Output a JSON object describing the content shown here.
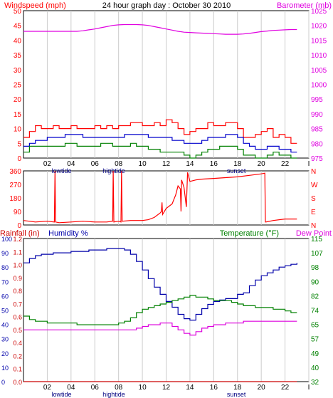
{
  "title": "24 hour graph day : October 30 2010",
  "colors": {
    "wind": "#ff0000",
    "gust_avg": "#0000cc",
    "wind_low": "#008000",
    "baro": "#e000e0",
    "rain": "#cc0000",
    "humidity": "#0000aa",
    "temperature": "#008000",
    "dewpoint": "#dd00dd",
    "grid": "#cccccc",
    "black": "#000000"
  },
  "x_axis": {
    "ticks": [
      "02",
      "04",
      "06",
      "08",
      "10",
      "12",
      "14",
      "16",
      "18",
      "20",
      "22",
      "I"
    ],
    "events": [
      {
        "label": "lowtide",
        "at": 3.2
      },
      {
        "label": "hightide",
        "at": 7.6
      },
      {
        "label": "sunset",
        "at": 17.9
      }
    ]
  },
  "chart_data": [
    {
      "id": "wind",
      "type": "line",
      "left_label": "Windspeed (mph)",
      "right_label": "Barometer (mb)",
      "left_ticks": [
        "0",
        "5",
        "10",
        "15",
        "20",
        "25",
        "30",
        "35",
        "40",
        "45",
        "50"
      ],
      "right_ticks": [
        "975",
        "980",
        "985",
        "990",
        "995",
        "1000",
        "1005",
        "1010",
        "1015",
        "1020",
        "1025"
      ],
      "ylim_left": [
        0,
        50
      ],
      "ylim_right": [
        975,
        1025
      ],
      "x_hours": [
        0,
        0.5,
        1,
        1.5,
        2,
        2.5,
        3,
        3.5,
        4,
        4.5,
        5,
        5.5,
        6,
        6.5,
        7,
        7.5,
        8,
        8.5,
        9,
        9.5,
        10,
        10.5,
        11,
        11.5,
        12,
        12.5,
        13,
        13.5,
        14,
        14.5,
        15,
        15.5,
        16,
        16.5,
        17,
        17.5,
        18,
        18.5,
        19,
        19.5,
        20,
        20.5,
        21,
        21.5,
        22,
        22.5,
        23
      ],
      "series": [
        {
          "key": "wind_high",
          "color_key": "wind",
          "values": [
            7,
            9,
            11,
            10,
            10,
            11,
            10,
            10,
            11,
            10,
            10,
            10,
            11,
            10,
            11,
            10,
            11,
            11,
            12,
            12,
            11,
            11,
            12,
            11,
            13,
            12,
            10,
            8,
            9,
            10,
            10,
            12,
            11,
            11,
            12,
            12,
            10,
            7,
            7,
            8,
            9,
            10,
            7,
            8,
            7,
            5,
            5
          ]
        },
        {
          "key": "wind_avg",
          "color_key": "gust_avg",
          "values": [
            4,
            5,
            6,
            6,
            7,
            7,
            7,
            8,
            8,
            8,
            7,
            7,
            7,
            7,
            7,
            7,
            7,
            8,
            8,
            8,
            8,
            7,
            7,
            7,
            7,
            6,
            6,
            5,
            5,
            5,
            6,
            7,
            7,
            7,
            8,
            8,
            7,
            5,
            4,
            3,
            3,
            4,
            4,
            3,
            3,
            2,
            2
          ]
        },
        {
          "key": "wind_low",
          "color_key": "wind_low",
          "values": [
            2,
            4,
            4,
            4,
            4,
            4,
            4,
            5,
            5,
            4,
            4,
            4,
            4,
            5,
            5,
            4,
            4,
            4,
            5,
            4,
            4,
            3,
            3,
            2,
            2,
            2,
            2,
            1,
            0,
            1,
            2,
            3,
            3,
            4,
            4,
            4,
            3,
            1,
            1,
            0,
            0,
            1,
            2,
            1,
            1,
            0,
            0
          ]
        },
        {
          "key": "barometer",
          "color_key": "baro",
          "axis": "right",
          "values": [
            1018,
            1018,
            1018,
            1018,
            1018,
            1018,
            1018,
            1018,
            1018,
            1018,
            1018.2,
            1018.5,
            1018.8,
            1019.2,
            1019.6,
            1020,
            1020.2,
            1020.3,
            1020.3,
            1020.3,
            1020.2,
            1020,
            1019.6,
            1019.2,
            1018.8,
            1018.4,
            1018,
            1017.7,
            1017.6,
            1017.5,
            1017.4,
            1017.3,
            1017.2,
            1017.1,
            1017,
            1017,
            1017,
            1017.1,
            1017.3,
            1017.6,
            1017.9,
            1018.1,
            1018.3,
            1018.4,
            1018.5,
            1018.6,
            1018.6
          ]
        }
      ]
    },
    {
      "id": "direction",
      "type": "line",
      "left_ticks": [
        "0",
        "90",
        "180",
        "270",
        "360"
      ],
      "right_ticks": [
        "N",
        "E",
        "S",
        "W",
        "N"
      ],
      "ylim": [
        0,
        360
      ],
      "x_hours": [
        0,
        1,
        2,
        2.6,
        2.65,
        2.7,
        3,
        4,
        5,
        6,
        7,
        7.5,
        7.55,
        7.6,
        8,
        8.2,
        8.25,
        8.3,
        9,
        10,
        10.5,
        11,
        11.5,
        11.6,
        11.65,
        11.7,
        12,
        12.5,
        12.8,
        13,
        13.2,
        13.25,
        13.3,
        13.5,
        13.7,
        13.8,
        14,
        14.5,
        15,
        16,
        17,
        18,
        19,
        20,
        20.3,
        20.35,
        20.4,
        21,
        22,
        23
      ],
      "series": [
        {
          "key": "wind_dir",
          "color_key": "wind",
          "values": [
            30,
            20,
            25,
            20,
            360,
            20,
            15,
            20,
            25,
            20,
            20,
            25,
            360,
            20,
            25,
            20,
            360,
            25,
            30,
            30,
            35,
            50,
            80,
            90,
            150,
            70,
            110,
            140,
            200,
            260,
            240,
            90,
            300,
            250,
            120,
            350,
            290,
            300,
            305,
            310,
            315,
            320,
            330,
            340,
            345,
            20,
            20,
            30,
            40,
            40
          ]
        }
      ]
    },
    {
      "id": "temp_humidity",
      "type": "line",
      "left_label_rain": "Rainfall (in)",
      "left_label_hum": "Humidity %",
      "right_label_temp": "Temperature (°F)",
      "right_label_dew": "Dew Point",
      "rain_ticks": [
        "0.0",
        "0.1",
        "0.2",
        "0.4",
        "0.5",
        "0.6",
        "0.7",
        "0.8",
        "0.9",
        "1.0",
        "1.1",
        "1.2"
      ],
      "humidity_ticks": [
        "0",
        "10",
        "20",
        "30",
        "40",
        "50",
        "60",
        "70",
        "80",
        "90",
        "100"
      ],
      "temp_ticks": [
        "32",
        "40",
        "49",
        "57",
        "65",
        "74",
        "82",
        "90",
        "98",
        "107",
        "115"
      ],
      "ylim_humidity": [
        0,
        100
      ],
      "ylim_temp": [
        32,
        115
      ],
      "x_hours": [
        0,
        0.5,
        1,
        1.5,
        2,
        2.5,
        3,
        3.5,
        4,
        4.5,
        5,
        5.5,
        6,
        6.5,
        7,
        7.5,
        8,
        8.5,
        9,
        9.5,
        10,
        10.5,
        11,
        11.5,
        12,
        12.5,
        13,
        13.5,
        14,
        14.5,
        15,
        15.5,
        16,
        16.5,
        17,
        17.5,
        18,
        18.5,
        19,
        19.5,
        20,
        20.5,
        21,
        21.5,
        22,
        22.5,
        23
      ],
      "series": [
        {
          "key": "humidity",
          "color_key": "humidity",
          "values": [
            83,
            86,
            88,
            89,
            89,
            90,
            90,
            90,
            91,
            91,
            91,
            92,
            92,
            92,
            93,
            93,
            93,
            92,
            89,
            84,
            78,
            72,
            66,
            61,
            56,
            52,
            47,
            44,
            43,
            47,
            51,
            54,
            56,
            57,
            58,
            58,
            61,
            62,
            67,
            71,
            74,
            76,
            78,
            80,
            81,
            82,
            83
          ]
        },
        {
          "key": "temperature",
          "color_key": "temperature",
          "values": [
            70,
            68,
            67,
            67,
            66,
            66,
            66,
            66,
            66,
            65,
            65,
            65,
            65,
            65,
            65,
            65,
            66,
            67,
            69,
            72,
            74,
            75,
            76,
            77,
            78,
            79,
            80,
            81,
            82,
            81,
            81,
            80,
            79,
            79,
            79,
            78,
            77,
            76,
            76,
            75,
            75,
            75,
            74,
            74,
            73,
            72,
            72
          ]
        },
        {
          "key": "dewpoint",
          "color_key": "dewpoint",
          "values": [
            62,
            62,
            62,
            62,
            62,
            62,
            62,
            62,
            62,
            62,
            62,
            62,
            62,
            62,
            62,
            62,
            62,
            62,
            62,
            63,
            64,
            65,
            65,
            66,
            66,
            64,
            62,
            60,
            59,
            61,
            63,
            64,
            65,
            65,
            66,
            66,
            66,
            67,
            67,
            67,
            67,
            67,
            67,
            67,
            67,
            67,
            67
          ]
        },
        {
          "key": "rainfall",
          "color_key": "rain",
          "values": [
            0,
            0,
            0,
            0,
            0,
            0,
            0,
            0,
            0,
            0,
            0,
            0,
            0,
            0,
            0,
            0,
            0,
            0,
            0,
            0,
            0,
            0,
            0,
            0,
            0,
            0,
            0,
            0,
            0,
            0,
            0,
            0,
            0,
            0,
            0,
            0,
            0,
            0,
            0,
            0,
            0,
            0,
            0,
            0,
            0,
            0,
            0
          ]
        }
      ]
    }
  ]
}
